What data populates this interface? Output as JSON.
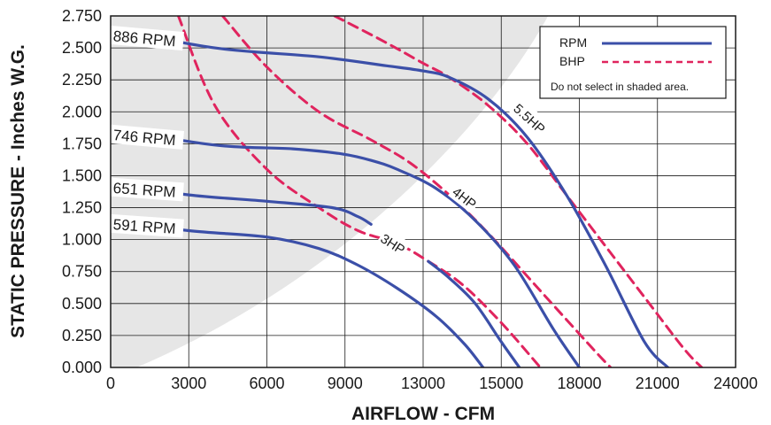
{
  "chart_data": {
    "type": "line",
    "xlabel": "AIRFLOW - CFM",
    "ylabel": "STATIC PRESSURE - Inches W.G.",
    "xlim": [
      0,
      24000
    ],
    "ylim": [
      0,
      2.75
    ],
    "x_ticks": [
      "0",
      "3000",
      "6000",
      "9000",
      "13000",
      "15000",
      "18000",
      "21000",
      "24000"
    ],
    "y_ticks": [
      "0.000",
      "0.250",
      "0.500",
      "0.750",
      "1.000",
      "1.250",
      "1.500",
      "1.750",
      "2.000",
      "2.250",
      "2.500",
      "2.750"
    ],
    "grid": true,
    "legend": {
      "position": "top-right",
      "entries": [
        {
          "label": "RPM",
          "color": "#3b4fa8",
          "style": "solid"
        },
        {
          "label": "BHP",
          "color": "#e0245e",
          "style": "dashed"
        }
      ],
      "note": "Do not select in shaded area."
    },
    "shaded_region_color": "#e6e6e6",
    "rpm_color": "#3b4fa8",
    "bhp_color": "#e0245e",
    "series": [
      {
        "name": "886 RPM",
        "kind": "rpm",
        "label": "886 RPM",
        "x": [
          0,
          4000,
          8000,
          10600,
          12000,
          13000,
          14500,
          16000,
          17500,
          19000,
          20500,
          21400
        ],
        "y": [
          2.65,
          2.5,
          2.43,
          2.36,
          2.32,
          2.27,
          2.1,
          1.8,
          1.35,
          0.8,
          0.2,
          0.0
        ]
      },
      {
        "name": "746 RPM",
        "kind": "rpm",
        "label": "746 RPM",
        "x": [
          0,
          4000,
          7000,
          8900,
          10000,
          11000,
          12500,
          14000,
          15500,
          17000,
          18000
        ],
        "y": [
          1.87,
          1.74,
          1.71,
          1.67,
          1.62,
          1.55,
          1.4,
          1.15,
          0.8,
          0.3,
          0.0
        ]
      },
      {
        "name": "651 RPM",
        "kind": "rpm",
        "label": "651 RPM",
        "x": [
          0,
          3000,
          6000,
          8500,
          9500,
          10000
        ],
        "y": [
          1.44,
          1.35,
          1.3,
          1.25,
          1.18,
          1.12
        ]
      },
      {
        "name": "651 RPM (lower)",
        "kind": "rpm",
        "label": "",
        "x": [
          12200,
          13000,
          14000,
          15000,
          15700
        ],
        "y": [
          0.83,
          0.7,
          0.5,
          0.2,
          0.0
        ]
      },
      {
        "name": "591 RPM",
        "kind": "rpm",
        "label": "591 RPM",
        "x": [
          0,
          3000,
          6000,
          8000,
          9500,
          11000,
          12500,
          13600,
          14300
        ],
        "y": [
          1.15,
          1.07,
          1.02,
          0.93,
          0.8,
          0.62,
          0.4,
          0.18,
          0.0
        ]
      },
      {
        "name": "3HP",
        "kind": "bhp",
        "label": "3HP",
        "x": [
          2600,
          4000,
          6000,
          8000,
          9500,
          11000,
          12200,
          13500,
          15000,
          16500
        ],
        "y": [
          2.75,
          2.05,
          1.55,
          1.25,
          1.07,
          0.97,
          0.83,
          0.65,
          0.35,
          0.0
        ]
      },
      {
        "name": "4HP",
        "kind": "bhp",
        "label": "4HP",
        "x": [
          4300,
          6000,
          8000,
          10000,
          11500,
          13000,
          14500,
          16500,
          18500,
          19200
        ],
        "y": [
          2.75,
          2.35,
          2.0,
          1.78,
          1.6,
          1.35,
          1.05,
          0.6,
          0.15,
          0.0
        ]
      },
      {
        "name": "5.5HP",
        "kind": "bhp",
        "label": "5.5HP",
        "x": [
          8600,
          10500,
          12000,
          13000,
          14500,
          16000,
          17500,
          19000,
          20500,
          22000,
          22700
        ],
        "y": [
          2.75,
          2.55,
          2.38,
          2.27,
          2.05,
          1.75,
          1.35,
          0.95,
          0.55,
          0.15,
          0.0
        ]
      }
    ]
  }
}
